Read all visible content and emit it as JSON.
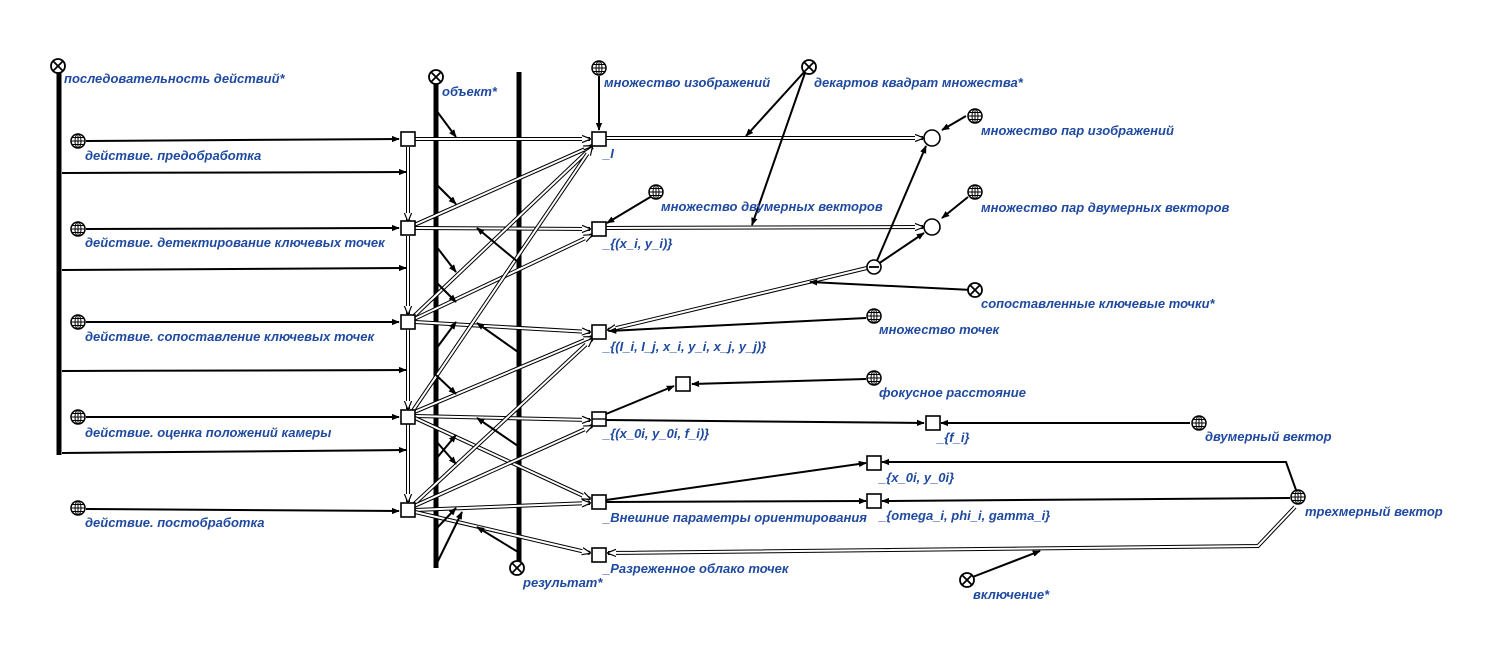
{
  "labels": {
    "seq": "последовательность действий*",
    "object": "объект*",
    "result": "результат*",
    "images_set": "множество изображений",
    "cart": "декартов квадрат множества*",
    "image_pairs": "множество пар изображений",
    "vec2_set": "множество двумерных векторов",
    "vec2_pairs": "множество пар двумерных векторов",
    "matched": "сопоставленные ключевые точки*",
    "points_set": "множество точек",
    "focal": "фокусное расстояние",
    "vec2": "двумерный вектор",
    "vec3": "трехмерный вектор",
    "inclusion": "включение*",
    "a1": "действие. предобработка",
    "a2": "действие. детектирование ключевых точек",
    "a3": "действие. сопоставление ключевых точек",
    "a4": "действие. оценка положений камеры",
    "a5": "действие. постобработка",
    "n_I": "_I",
    "n_xy": "_{(x_i, y_i)}",
    "n_IIxy": "_{(I_i, I_j, x_i, y_i, x_j, y_j)}",
    "n_xyf": "_{(x_0i, y_0i, f_i)}",
    "n_ext": "_Внешние параметры ориентирования",
    "n_cloud": "_Разреженное облако точек",
    "n_f": "_{f_i}",
    "n_xy0": "_{x_0i, y_0i}",
    "n_omega": "_{omega_i, phi_i, gamma_i}"
  },
  "icons": {
    "class_icon": "globe-class-icon",
    "relation_icon": "cross-circle-relation-icon",
    "tuple_icon": "small-circle-tuple-icon",
    "minus_icon": "minus-circle-icon"
  },
  "colors": {
    "label": "#1f4aa0",
    "line": "#000000"
  }
}
